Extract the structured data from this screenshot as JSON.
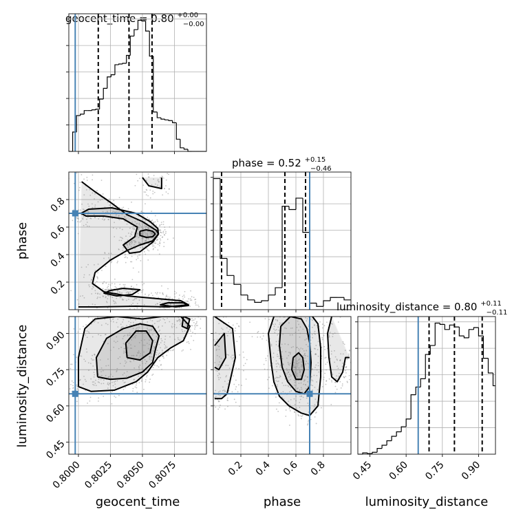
{
  "chart_data": {
    "type": "corner",
    "colors": {
      "truth": "#4682b4",
      "line": "#000000",
      "grid": "#b0b0b0"
    },
    "parameters": [
      {
        "name": "geocent_time",
        "xlabel": "geocent_time",
        "title": {
          "main": "geocent_time = 0.80",
          "sup": "+0.00",
          "sub": "−0.00"
        },
        "range": [
          0.79925,
          0.81
        ],
        "ticks": [
          0.8,
          0.8025,
          0.805,
          0.8075
        ],
        "tick_labels": [
          "0.8000",
          "0.8025",
          "0.8050",
          "0.8075"
        ],
        "truth": 0.79975,
        "quantiles": [
          0.80155,
          0.80395,
          0.80575
        ],
        "hist_edges": [
          0.79925,
          0.79955,
          0.79985,
          0.80015,
          0.80045,
          0.80075,
          0.80105,
          0.80135,
          0.80165,
          0.80195,
          0.80225,
          0.80255,
          0.80285,
          0.80315,
          0.80345,
          0.80375,
          0.80405,
          0.80435,
          0.80465,
          0.80495,
          0.80525,
          0.80555,
          0.80585,
          0.80615,
          0.80645,
          0.80675,
          0.80705,
          0.80735,
          0.80765,
          0.80795,
          0.80825,
          0.80855,
          0.80885,
          0.80915,
          0.80945,
          0.80975,
          0.81
        ],
        "hist_counts": [
          0,
          27,
          50,
          52,
          57,
          57,
          58,
          59,
          73,
          88,
          104,
          107,
          121,
          122,
          123,
          134,
          161,
          170,
          183,
          182,
          168,
          133,
          55,
          47,
          45,
          44,
          43,
          40,
          17,
          5,
          3,
          0,
          0,
          0,
          0,
          0
        ]
      },
      {
        "name": "phase",
        "xlabel": "phase",
        "ylabel": "phase",
        "title": {
          "main": "phase = 0.52",
          "sup": "+0.15",
          "sub": "−0.46"
        },
        "range": [
          0.0,
          1.0
        ],
        "ticks": [
          0.2,
          0.4,
          0.6,
          0.8
        ],
        "tick_labels": [
          "0.2",
          "0.4",
          "0.6",
          "0.8"
        ],
        "truth": 0.7,
        "quantiles": [
          0.06,
          0.52,
          0.67
        ],
        "hist_edges": [
          0.0,
          0.05,
          0.1,
          0.15,
          0.2,
          0.25,
          0.3,
          0.35,
          0.4,
          0.45,
          0.5,
          0.55,
          0.6,
          0.65,
          0.7,
          0.75,
          0.8,
          0.85,
          0.9,
          0.95,
          1.0
        ],
        "hist_counts": [
          161,
          63,
          42,
          31,
          18,
          12,
          9,
          11,
          18,
          27,
          127,
          123,
          137,
          95,
          8,
          4,
          11,
          15,
          15,
          12
        ]
      },
      {
        "name": "luminosity_distance",
        "xlabel": "luminosity_distance",
        "ylabel": "luminosity_distance",
        "title": {
          "main": "luminosity_distance = 0.80",
          "sup": "+0.11",
          "sub": "−0.11"
        },
        "range": [
          0.4,
          0.97
        ],
        "ticks": [
          0.45,
          0.6,
          0.75,
          0.9
        ],
        "tick_labels": [
          "0.45",
          "0.60",
          "0.75",
          "0.90"
        ],
        "truth": 0.65,
        "quantiles": [
          0.695,
          0.8,
          0.915
        ],
        "hist_edges": [
          0.4,
          0.42,
          0.44,
          0.46,
          0.48,
          0.5,
          0.52,
          0.54,
          0.56,
          0.58,
          0.6,
          0.62,
          0.64,
          0.66,
          0.68,
          0.7,
          0.72,
          0.74,
          0.76,
          0.78,
          0.8,
          0.82,
          0.84,
          0.86,
          0.88,
          0.9,
          0.92,
          0.94,
          0.96,
          0.97
        ],
        "hist_counts": [
          0,
          2,
          1,
          3,
          9,
          14,
          21,
          28,
          35,
          43,
          55,
          93,
          105,
          118,
          156,
          170,
          205,
          203,
          195,
          202,
          199,
          185,
          182,
          195,
          198,
          185,
          150,
          127,
          107
        ]
      }
    ],
    "pairs": [
      {
        "x": "geocent_time",
        "y": "phase",
        "truth_point": [
          0.79975,
          0.7
        ],
        "contours": [
          [
            [
              0.80025,
              0.93
            ],
            [
              0.80125,
              0.86
            ],
            [
              0.8025,
              0.78
            ],
            [
              0.8038,
              0.69
            ],
            [
              0.805,
              0.64
            ],
            [
              0.8061,
              0.575
            ],
            [
              0.80625,
              0.55
            ],
            [
              0.8058,
              0.5
            ],
            [
              0.8048,
              0.47
            ],
            [
              0.8038,
              0.43
            ],
            [
              0.8025,
              0.36
            ],
            [
              0.8013,
              0.27
            ],
            [
              0.8011,
              0.19
            ],
            [
              0.802,
              0.13
            ],
            [
              0.8038,
              0.1
            ],
            [
              0.8062,
              0.08
            ],
            [
              0.808,
              0.065
            ],
            [
              0.8086,
              0.035
            ],
            [
              0.807,
              0.02
            ],
            [
              0.8045,
              0.025
            ],
            [
              0.8015,
              0.02
            ],
            [
              0.8,
              0.02
            ]
          ],
          [
            [
              0.805,
              0.96
            ],
            [
              0.8055,
              0.9
            ],
            [
              0.8065,
              0.88
            ],
            [
              0.8065,
              0.96
            ]
          ],
          [
            [
              0.8002,
              0.7
            ],
            [
              0.8008,
              0.73
            ],
            [
              0.8026,
              0.74
            ],
            [
              0.8045,
              0.7
            ],
            [
              0.8056,
              0.64
            ],
            [
              0.8062,
              0.59
            ],
            [
              0.80625,
              0.55
            ],
            [
              0.8058,
              0.49
            ],
            [
              0.8048,
              0.42
            ],
            [
              0.804,
              0.41
            ],
            [
              0.8035,
              0.47
            ],
            [
              0.8044,
              0.53
            ],
            [
              0.8046,
              0.6
            ],
            [
              0.8035,
              0.66
            ],
            [
              0.802,
              0.68
            ],
            [
              0.8006,
              0.68
            ],
            [
              0.8002,
              0.7
            ]
          ],
          [
            [
              0.8025,
              0.14
            ],
            [
              0.802,
              0.12
            ],
            [
              0.803,
              0.1
            ],
            [
              0.8042,
              0.11
            ],
            [
              0.8048,
              0.145
            ],
            [
              0.8035,
              0.155
            ],
            [
              0.8025,
              0.14
            ]
          ],
          [
            [
              0.807,
              0.05
            ],
            [
              0.8064,
              0.035
            ],
            [
              0.8076,
              0.02
            ],
            [
              0.8086,
              0.03
            ],
            [
              0.8082,
              0.05
            ],
            [
              0.807,
              0.05
            ]
          ],
          [
            [
              0.8048,
              0.57
            ],
            [
              0.8053,
              0.58
            ],
            [
              0.8058,
              0.57
            ],
            [
              0.806,
              0.55
            ],
            [
              0.8058,
              0.53
            ],
            [
              0.8053,
              0.525
            ],
            [
              0.8048,
              0.54
            ],
            [
              0.8048,
              0.57
            ]
          ]
        ]
      },
      {
        "x": "geocent_time",
        "y": "luminosity_distance",
        "truth_point": [
          0.79975,
          0.65
        ],
        "contours": [
          [
            [
              0.8,
              0.68
            ],
            [
              0.8,
              0.8
            ],
            [
              0.8005,
              0.92
            ],
            [
              0.8013,
              0.96
            ],
            [
              0.803,
              0.97
            ],
            [
              0.805,
              0.96
            ],
            [
              0.8065,
              0.97
            ],
            [
              0.808,
              0.97
            ],
            [
              0.8087,
              0.93
            ],
            [
              0.8082,
              0.87
            ],
            [
              0.8072,
              0.84
            ],
            [
              0.8062,
              0.8
            ],
            [
              0.8054,
              0.74
            ],
            [
              0.8045,
              0.7
            ],
            [
              0.8028,
              0.665
            ],
            [
              0.801,
              0.66
            ],
            [
              0.8,
              0.68
            ]
          ],
          [
            [
              0.8015,
              0.72
            ],
            [
              0.8014,
              0.8
            ],
            [
              0.8022,
              0.88
            ],
            [
              0.8035,
              0.92
            ],
            [
              0.8048,
              0.94
            ],
            [
              0.8058,
              0.93
            ],
            [
              0.8063,
              0.89
            ],
            [
              0.806,
              0.83
            ],
            [
              0.8058,
              0.78
            ],
            [
              0.805,
              0.74
            ],
            [
              0.8038,
              0.715
            ],
            [
              0.8025,
              0.71
            ],
            [
              0.8015,
              0.72
            ]
          ],
          [
            [
              0.8038,
              0.8
            ],
            [
              0.8037,
              0.86
            ],
            [
              0.8045,
              0.91
            ],
            [
              0.8053,
              0.91
            ],
            [
              0.8058,
              0.87
            ],
            [
              0.8056,
              0.82
            ],
            [
              0.8048,
              0.79
            ],
            [
              0.8038,
              0.8
            ]
          ],
          [
            [
              0.8082,
              0.97
            ],
            [
              0.8081,
              0.93
            ],
            [
              0.8085,
              0.92
            ],
            [
              0.8087,
              0.96
            ],
            [
              0.8082,
              0.97
            ]
          ]
        ]
      },
      {
        "x": "phase",
        "y": "luminosity_distance",
        "truth_point": [
          0.7,
          0.65
        ],
        "contours": [
          [
            [
              0.01,
              0.97
            ],
            [
              0.14,
              0.92
            ],
            [
              0.16,
              0.8
            ],
            [
              0.12,
              0.7
            ],
            [
              0.1,
              0.65
            ],
            [
              0.06,
              0.63
            ],
            [
              0.01,
              0.63
            ]
          ],
          [
            [
              0.01,
              0.85
            ],
            [
              0.08,
              0.9
            ],
            [
              0.09,
              0.8
            ],
            [
              0.04,
              0.75
            ],
            [
              0.01,
              0.76
            ]
          ],
          [
            [
              0.44,
              0.97
            ],
            [
              0.4,
              0.9
            ],
            [
              0.42,
              0.78
            ],
            [
              0.44,
              0.7
            ],
            [
              0.48,
              0.64
            ],
            [
              0.55,
              0.6
            ],
            [
              0.64,
              0.57
            ],
            [
              0.7,
              0.56
            ],
            [
              0.76,
              0.6
            ],
            [
              0.78,
              0.72
            ],
            [
              0.78,
              0.84
            ],
            [
              0.76,
              0.94
            ],
            [
              0.72,
              0.97
            ]
          ],
          [
            [
              0.49,
              0.93
            ],
            [
              0.48,
              0.85
            ],
            [
              0.5,
              0.76
            ],
            [
              0.54,
              0.7
            ],
            [
              0.6,
              0.66
            ],
            [
              0.66,
              0.65
            ],
            [
              0.7,
              0.68
            ],
            [
              0.71,
              0.78
            ],
            [
              0.7,
              0.86
            ],
            [
              0.68,
              0.92
            ],
            [
              0.64,
              0.96
            ],
            [
              0.56,
              0.97
            ],
            [
              0.49,
              0.93
            ]
          ],
          [
            [
              0.58,
              0.8
            ],
            [
              0.57,
              0.75
            ],
            [
              0.6,
              0.71
            ],
            [
              0.64,
              0.71
            ],
            [
              0.66,
              0.75
            ],
            [
              0.65,
              0.8
            ],
            [
              0.62,
              0.82
            ],
            [
              0.58,
              0.8
            ]
          ],
          [
            [
              0.86,
              0.97
            ],
            [
              0.83,
              0.9
            ],
            [
              0.84,
              0.8
            ],
            [
              0.86,
              0.72
            ],
            [
              0.9,
              0.7
            ],
            [
              0.94,
              0.74
            ],
            [
              0.96,
              0.8
            ],
            [
              0.99,
              0.8
            ]
          ]
        ]
      }
    ]
  }
}
